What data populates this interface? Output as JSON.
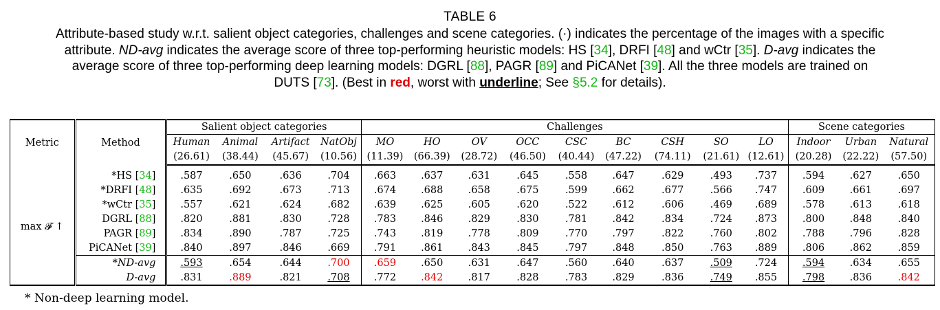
{
  "caption": {
    "title": "TABLE 6",
    "line1_a": "Attribute-based study w.r.t. salient object categories, challenges and scene categories. (·) indicates the percentage of the images with a specific",
    "line2_a": "attribute. ",
    "line2_b": "ND-avg",
    "line2_c": " indicates the average score of three top-performing heuristic models: HS [",
    "line2_r1": "34",
    "line2_d": "], DRFI [",
    "line2_r2": "48",
    "line2_e": "] and wCtr [",
    "line2_r3": "35",
    "line2_f": "]. ",
    "line2_g": "D-avg",
    "line2_h": " indicates the",
    "line3_a": "average score of three top-performing deep learning models: DGRL [",
    "line3_r1": "88",
    "line3_b": "], PAGR [",
    "line3_r2": "89",
    "line3_c": "] and PiCANet [",
    "line3_r3": "39",
    "line3_d": "]. All the three models are trained on",
    "line4_a": "DUTS [",
    "line4_r1": "73",
    "line4_b": "]. (Best in ",
    "line4_red": "red",
    "line4_c": ", worst with ",
    "line4_ul": "underline",
    "line4_d": "; See ",
    "line4_sec": "§5.2",
    "line4_e": " for details)."
  },
  "table": {
    "metric_header": "Metric",
    "method_header": "Method",
    "group_headers": [
      "Salient object categories",
      "Challenges",
      "Scene categories"
    ],
    "columns": [
      "Human",
      "Animal",
      "Artifact",
      "NatObj",
      "MO",
      "HO",
      "OV",
      "OCC",
      "CSC",
      "BC",
      "CSH",
      "SO",
      "LO",
      "Indoor",
      "Urban",
      "Natural"
    ],
    "percentages": [
      "(26.61)",
      "(38.44)",
      "(45.67)",
      "(10.56)",
      "(11.39)",
      "(66.39)",
      "(28.72)",
      "(46.50)",
      "(40.44)",
      "(47.22)",
      "(74.11)",
      "(21.61)",
      "(12.61)",
      "(20.28)",
      "(22.22)",
      "(57.50)"
    ],
    "metric_label": "max 𝓕 ↑",
    "rows": [
      {
        "prefix": "*HS [",
        "ref": "34",
        "suffix": "]",
        "values": [
          ".587",
          ".650",
          ".636",
          ".704",
          ".663",
          ".637",
          ".631",
          ".645",
          ".558",
          ".647",
          ".629",
          ".493",
          ".737",
          ".594",
          ".627",
          ".650"
        ]
      },
      {
        "prefix": "*DRFI [",
        "ref": "48",
        "suffix": "]",
        "values": [
          ".635",
          ".692",
          ".673",
          ".713",
          ".674",
          ".688",
          ".658",
          ".675",
          ".599",
          ".662",
          ".677",
          ".566",
          ".747",
          ".609",
          ".661",
          ".697"
        ]
      },
      {
        "prefix": "*wCtr [",
        "ref": "35",
        "suffix": "]",
        "values": [
          ".557",
          ".621",
          ".624",
          ".682",
          ".639",
          ".625",
          ".605",
          ".620",
          ".522",
          ".612",
          ".606",
          ".469",
          ".689",
          ".578",
          ".613",
          ".618"
        ]
      },
      {
        "prefix": "DGRL [",
        "ref": "88",
        "suffix": "]",
        "values": [
          ".820",
          ".881",
          ".830",
          ".728",
          ".783",
          ".846",
          ".829",
          ".830",
          ".781",
          ".842",
          ".834",
          ".724",
          ".873",
          ".800",
          ".848",
          ".840"
        ]
      },
      {
        "prefix": "PAGR [",
        "ref": "89",
        "suffix": "]",
        "values": [
          ".834",
          ".890",
          ".787",
          ".725",
          ".743",
          ".819",
          ".778",
          ".809",
          ".770",
          ".797",
          ".822",
          ".760",
          ".802",
          ".788",
          ".796",
          ".828"
        ]
      },
      {
        "prefix": "PiCANet [",
        "ref": "39",
        "suffix": "]",
        "values": [
          ".840",
          ".897",
          ".846",
          ".669",
          ".791",
          ".861",
          ".843",
          ".845",
          ".797",
          ".848",
          ".850",
          ".763",
          ".889",
          ".806",
          ".862",
          ".859"
        ]
      }
    ],
    "avg_rows": [
      {
        "label": "*ND-avg",
        "values": [
          ".593",
          ".654",
          ".644",
          ".700",
          ".659",
          ".650",
          ".631",
          ".647",
          ".560",
          ".640",
          ".637",
          ".509",
          ".724",
          ".594",
          ".634",
          ".655"
        ]
      },
      {
        "label": "D-avg",
        "values": [
          ".831",
          ".889",
          ".821",
          ".708",
          ".772",
          ".842",
          ".817",
          ".828",
          ".783",
          ".829",
          ".836",
          ".749",
          ".855",
          ".798",
          ".836",
          ".842"
        ]
      }
    ]
  },
  "footnote": "* Non-deep learning model.",
  "colors": {
    "best": "#e00000",
    "ref": "#14b814"
  }
}
